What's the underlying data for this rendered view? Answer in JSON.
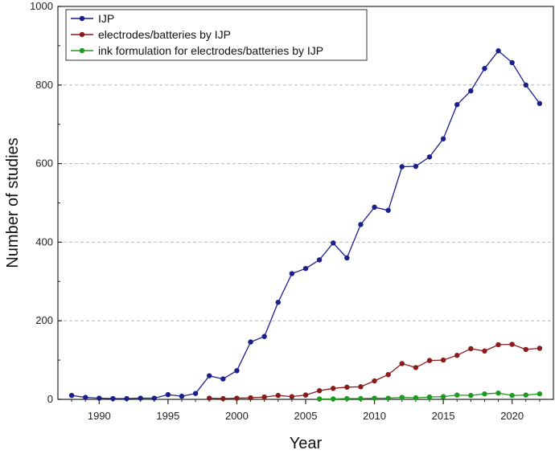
{
  "chart_data": {
    "type": "line",
    "xlabel": "Year",
    "ylabel": "Number of studies",
    "xlim": [
      1987,
      2023
    ],
    "ylim": [
      0,
      1000
    ],
    "x_ticks": [
      1990,
      1995,
      2000,
      2005,
      2010,
      2015,
      2020
    ],
    "y_ticks": [
      0,
      200,
      400,
      600,
      800,
      1000
    ],
    "grid": "horizontal dashed",
    "legend_position": "top-left",
    "series": [
      {
        "name": "IJP",
        "color": "#1a1f8c",
        "x": [
          1988,
          1989,
          1990,
          1991,
          1992,
          1993,
          1994,
          1995,
          1996,
          1997,
          1998,
          1999,
          2000,
          2001,
          2002,
          2003,
          2004,
          2005,
          2006,
          2007,
          2008,
          2009,
          2010,
          2011,
          2012,
          2013,
          2014,
          2015,
          2016,
          2017,
          2018,
          2019,
          2020,
          2021,
          2022
        ],
        "values": [
          10,
          5,
          3,
          2,
          2,
          3,
          3,
          12,
          8,
          15,
          60,
          52,
          73,
          146,
          160,
          247,
          320,
          333,
          355,
          398,
          360,
          445,
          489,
          481,
          592,
          593,
          617,
          663,
          750,
          785,
          842,
          887,
          857,
          800,
          753
        ]
      },
      {
        "name": "electrodes/batteries by IJP",
        "color": "#8b1a1a",
        "x": [
          1998,
          1999,
          2000,
          2001,
          2002,
          2003,
          2004,
          2005,
          2006,
          2007,
          2008,
          2009,
          2010,
          2011,
          2012,
          2013,
          2014,
          2015,
          2016,
          2017,
          2018,
          2019,
          2020,
          2021,
          2022
        ],
        "values": [
          3,
          2,
          3,
          4,
          6,
          10,
          7,
          11,
          22,
          28,
          31,
          32,
          47,
          63,
          91,
          81,
          99,
          100,
          112,
          129,
          123,
          139,
          140,
          127,
          130
        ]
      },
      {
        "name": "ink formulation for electrodes/batteries by IJP",
        "color": "#1e9a1e",
        "x": [
          2006,
          2007,
          2008,
          2009,
          2010,
          2011,
          2012,
          2013,
          2014,
          2015,
          2016,
          2017,
          2018,
          2019,
          2020,
          2021,
          2022
        ],
        "values": [
          1,
          1,
          2,
          2,
          3,
          3,
          5,
          4,
          6,
          7,
          11,
          10,
          14,
          16,
          10,
          11,
          14
        ]
      }
    ]
  }
}
